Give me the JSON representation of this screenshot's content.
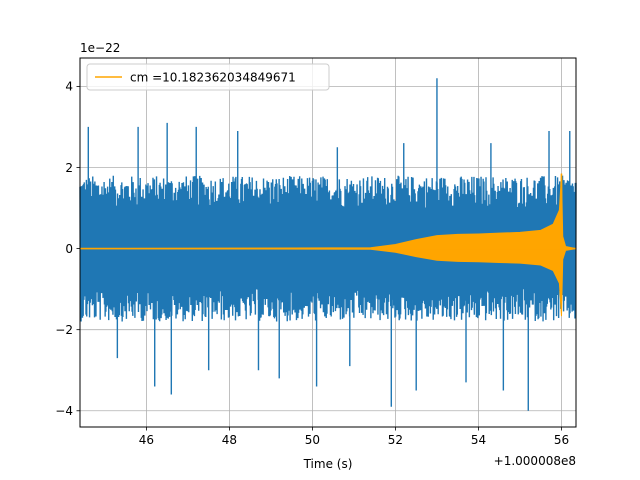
{
  "chart_data": {
    "type": "line",
    "xlabel": "Time (s)",
    "ylabel": "",
    "x_offset_label": "+1.000008e8",
    "y_scale_label": "1e−22",
    "xlim": [
      44.4,
      56.35
    ],
    "ylim": [
      -4.4,
      4.7
    ],
    "x_ticks": [
      46,
      48,
      50,
      52,
      54,
      56
    ],
    "x_tick_labels": [
      "46",
      "48",
      "50",
      "52",
      "54",
      "56"
    ],
    "y_ticks": [
      -4,
      -2,
      0,
      2,
      4
    ],
    "y_tick_labels": [
      "−4",
      "−2",
      "0",
      "2",
      "4"
    ],
    "grid": true,
    "legend_position": "top-left",
    "series": [
      {
        "name": "",
        "color": "#1f77b4",
        "noise_envelope": [
          {
            "x": 44.4,
            "y": 1.8
          },
          {
            "x": 46.0,
            "y": 1.8
          },
          {
            "x": 48.0,
            "y": 1.8
          },
          {
            "x": 50.0,
            "y": 1.8
          },
          {
            "x": 52.0,
            "y": 1.8
          },
          {
            "x": 54.0,
            "y": 1.8
          },
          {
            "x": 56.35,
            "y": 1.8
          }
        ],
        "peaks": [
          {
            "x": 44.6,
            "y": 3.0
          },
          {
            "x": 45.3,
            "y": -2.7
          },
          {
            "x": 45.8,
            "y": 3.0
          },
          {
            "x": 46.2,
            "y": -3.4
          },
          {
            "x": 46.5,
            "y": 3.1
          },
          {
            "x": 46.6,
            "y": -3.6
          },
          {
            "x": 47.2,
            "y": 3.0
          },
          {
            "x": 47.5,
            "y": -3.0
          },
          {
            "x": 48.2,
            "y": 2.9
          },
          {
            "x": 48.7,
            "y": -3.0
          },
          {
            "x": 49.2,
            "y": -3.2
          },
          {
            "x": 50.1,
            "y": -3.4
          },
          {
            "x": 50.6,
            "y": 2.5
          },
          {
            "x": 50.9,
            "y": -2.9
          },
          {
            "x": 51.9,
            "y": -3.9
          },
          {
            "x": 52.2,
            "y": 2.6
          },
          {
            "x": 52.5,
            "y": -3.5
          },
          {
            "x": 53.0,
            "y": 4.2
          },
          {
            "x": 53.7,
            "y": -3.3
          },
          {
            "x": 54.3,
            "y": 2.6
          },
          {
            "x": 54.6,
            "y": -3.5
          },
          {
            "x": 55.2,
            "y": -4.0
          },
          {
            "x": 55.7,
            "y": 2.9
          },
          {
            "x": 56.2,
            "y": 2.9
          }
        ]
      },
      {
        "name": "cm =10.182362034849671",
        "color": "#ffa500",
        "envelope": [
          {
            "x": 44.4,
            "y": 0.0
          },
          {
            "x": 51.4,
            "y": 0.02
          },
          {
            "x": 52.0,
            "y": 0.1
          },
          {
            "x": 52.5,
            "y": 0.22
          },
          {
            "x": 53.0,
            "y": 0.32
          },
          {
            "x": 53.5,
            "y": 0.35
          },
          {
            "x": 54.0,
            "y": 0.36
          },
          {
            "x": 54.5,
            "y": 0.38
          },
          {
            "x": 55.0,
            "y": 0.4
          },
          {
            "x": 55.5,
            "y": 0.45
          },
          {
            "x": 55.8,
            "y": 0.6
          },
          {
            "x": 55.95,
            "y": 0.95
          },
          {
            "x": 56.0,
            "y": 1.85
          },
          {
            "x": 56.03,
            "y": 0.3
          },
          {
            "x": 56.1,
            "y": 0.05
          },
          {
            "x": 56.35,
            "y": 0.0
          }
        ],
        "merger": {
          "x": 56.0,
          "y_max": 1.85,
          "y_min": -1.1
        }
      }
    ]
  }
}
